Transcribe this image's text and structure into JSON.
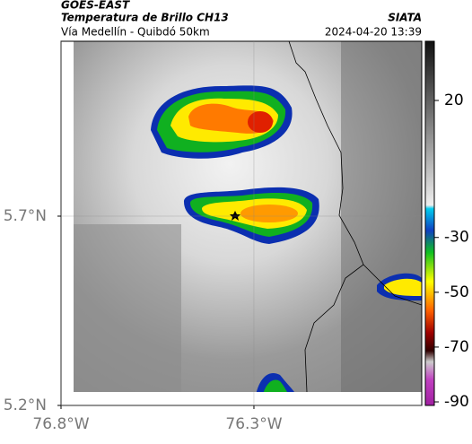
{
  "header": {
    "title": "GOES-EAST",
    "subtitle": "Temperatura de Brillo CH13",
    "route": "Vía Medellín - Quibdó 50km",
    "source": "SIATA",
    "datetime": "2024-04-20 13:39"
  },
  "map": {
    "xlim": [
      -76.8,
      -75.865
    ],
    "ylim": [
      5.2,
      6.162
    ],
    "xticks": [
      {
        "value": -76.8,
        "label": "76.8°W"
      },
      {
        "value": -76.3,
        "label": "76.3°W"
      }
    ],
    "yticks": [
      {
        "value": 5.7,
        "label": "5.7°N"
      },
      {
        "value": 5.2,
        "label": "5.2°N"
      }
    ],
    "grid": true
  },
  "colorbar": {
    "lim": [
      -91.3,
      41.6
    ],
    "ticks": [
      20,
      -30,
      -50,
      -70,
      -90
    ]
  }
}
